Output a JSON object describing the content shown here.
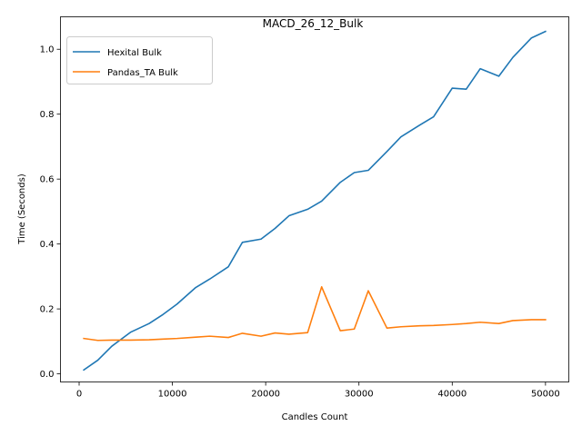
{
  "chart_data": {
    "type": "line",
    "title": "MACD_26_12_Bulk",
    "xlabel": "Candles Count",
    "ylabel": "Time (Seconds)",
    "xlim": [
      -2000,
      52500
    ],
    "ylim": [
      -0.025,
      1.1
    ],
    "xticks": [
      0,
      10000,
      20000,
      30000,
      40000,
      50000
    ],
    "yticks": [
      0.0,
      0.2,
      0.4,
      0.6,
      0.8,
      1.0
    ],
    "xtick_labels": [
      "0",
      "10000",
      "20000",
      "30000",
      "40000",
      "50000"
    ],
    "ytick_labels": [
      "0.0",
      "0.2",
      "0.4",
      "0.6",
      "0.8",
      "1.0"
    ],
    "legend_position": "upper-left",
    "grid": false,
    "x": [
      500,
      2000,
      3500,
      5500,
      7500,
      9000,
      10500,
      12500,
      14000,
      16000,
      17500,
      19500,
      21000,
      22500,
      24500,
      26000,
      28000,
      29500,
      31000,
      33000,
      34500,
      36500,
      38000,
      40000,
      41500,
      43000,
      45000,
      46500,
      48500,
      50000
    ],
    "series": [
      {
        "name": "Hexital Bulk",
        "color": "#1f77b4",
        "values": [
          0.012,
          0.042,
          0.085,
          0.128,
          0.155,
          0.183,
          0.215,
          0.266,
          0.292,
          0.33,
          0.405,
          0.415,
          0.448,
          0.487,
          0.507,
          0.532,
          0.59,
          0.62,
          0.627,
          0.685,
          0.73,
          0.766,
          0.792,
          0.88,
          0.877,
          0.94,
          0.917,
          0.975,
          1.035,
          1.055
        ]
      },
      {
        "name": "Pandas_TA Bulk",
        "color": "#ff7f0e",
        "values": [
          0.109,
          0.103,
          0.104,
          0.104,
          0.105,
          0.107,
          0.109,
          0.113,
          0.116,
          0.112,
          0.125,
          0.116,
          0.126,
          0.122,
          0.127,
          0.268,
          0.133,
          0.138,
          0.256,
          0.141,
          0.145,
          0.148,
          0.149,
          0.152,
          0.155,
          0.159,
          0.155,
          0.164,
          0.167,
          0.167
        ]
      }
    ]
  }
}
